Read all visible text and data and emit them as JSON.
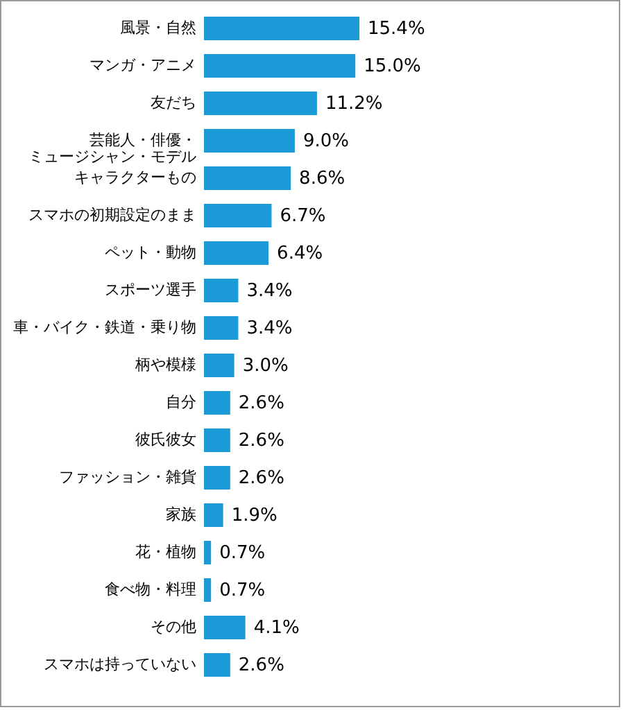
{
  "chart_data": {
    "type": "bar",
    "orientation": "horizontal",
    "categories": [
      "風景・自然",
      "マンガ・アニメ",
      "友だち",
      "芸能人・俳優・ミュージシャン・モデル",
      "キャラクターもの",
      "スマホの初期設定のまま",
      "ペット・動物",
      "スポーツ選手",
      "車・バイク・鉄道・乗り物",
      "柄や模様",
      "自分",
      "彼氏彼女",
      "ファッション・雑貨",
      "家族",
      "花・植物",
      "食べ物・料理",
      "その他",
      "スマホは持っていない"
    ],
    "values": [
      15.4,
      15.0,
      11.2,
      9.0,
      8.6,
      6.7,
      6.4,
      3.4,
      3.4,
      3.0,
      2.6,
      2.6,
      2.6,
      1.9,
      0.7,
      0.7,
      4.1,
      2.6
    ],
    "value_labels": [
      "15.4%",
      "15.0%",
      "11.2%",
      "9.0%",
      "8.6%",
      "6.7%",
      "6.4%",
      "3.4%",
      "3.4%",
      "3.0%",
      "2.6%",
      "2.6%",
      "2.6%",
      "1.9%",
      "0.7%",
      "0.7%",
      "4.1%",
      "2.6%"
    ],
    "color": "#1a9ad6"
  }
}
